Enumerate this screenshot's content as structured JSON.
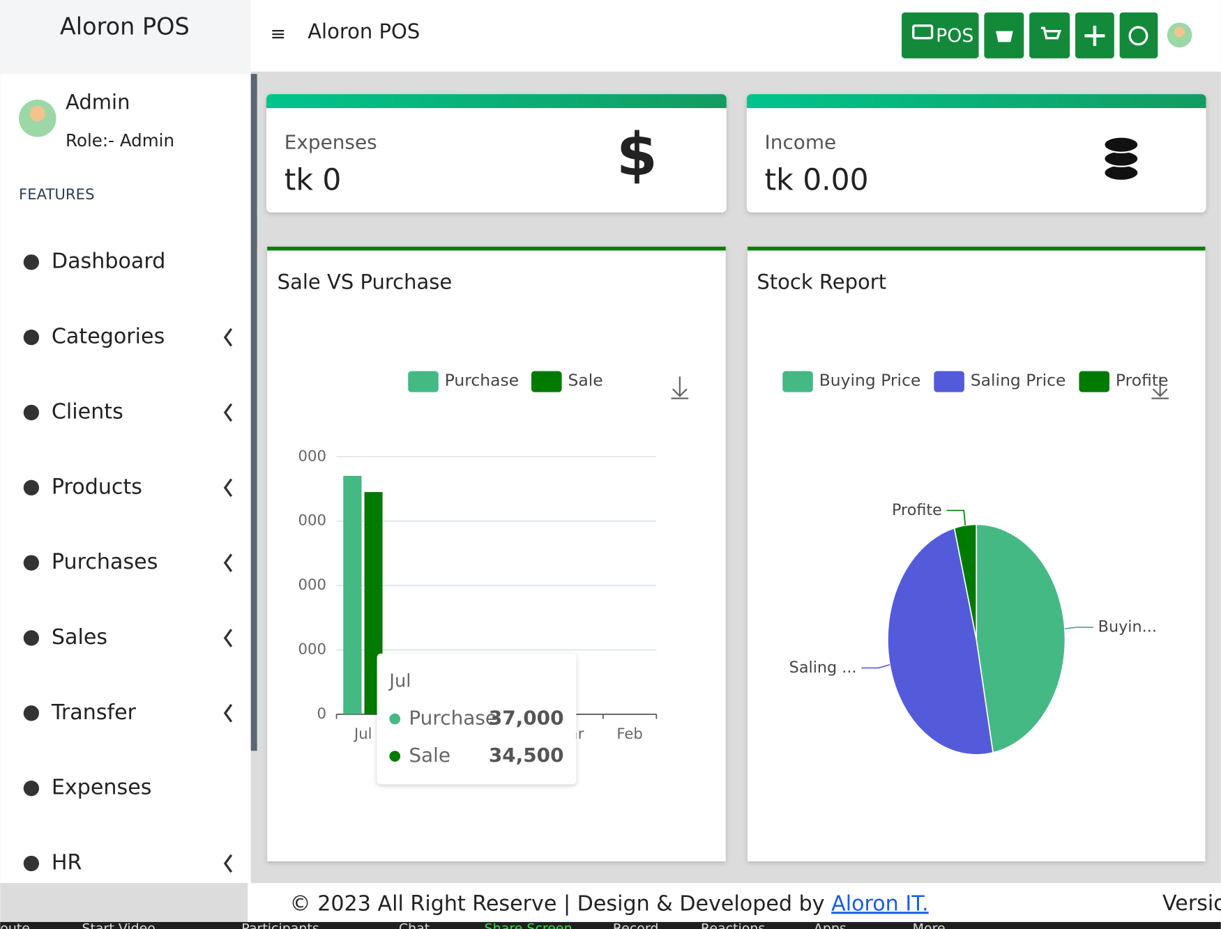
{
  "header": {
    "brand": "Aloron POS",
    "title": "Aloron POS",
    "pos_button": "POS"
  },
  "user": {
    "name": "Admin",
    "role": "Role:- Admin"
  },
  "menu": {
    "heading": "FEATURES",
    "items": [
      "Dashboard",
      "Categories",
      "Clients",
      "Products",
      "Purchases",
      "Sales",
      "Transfer",
      "Expenses",
      "HR"
    ]
  },
  "cards": [
    {
      "label": "Expenses",
      "value": "tk 0"
    },
    {
      "label": "Income",
      "value": "tk 0.00"
    }
  ],
  "chart_data": [
    {
      "type": "bar",
      "title": "Sale VS Purchase",
      "categories": [
        "Jul",
        null,
        null,
        null,
        "ar",
        "Feb"
      ],
      "series": [
        {
          "name": "Purchase",
          "color": "#45b984",
          "values": [
            37000,
            0,
            0,
            0,
            0,
            0
          ],
          "value_labels": [
            "37,000",
            null,
            null,
            null,
            null,
            null
          ]
        },
        {
          "name": "Sale",
          "color": "#007a00",
          "values": [
            34500,
            0,
            0,
            0,
            0,
            0
          ],
          "value_labels": [
            "34,500",
            null,
            null,
            null,
            null,
            null
          ]
        }
      ],
      "ylim": [
        0,
        40000
      ],
      "yticks": [
        0,
        {
          "value": 10000,
          "label": ",000"
        },
        {
          "value": 20000,
          "label": ",000"
        },
        {
          "value": 30000,
          "label": ",000"
        },
        {
          "value": 40000,
          "label": ",000"
        }
      ],
      "grid": true
    },
    {
      "type": "pie",
      "title": "Stock Report",
      "categories": [
        "Buying Price",
        "Saling Price",
        "Profite"
      ],
      "values": [
        47,
        49,
        4
      ],
      "colors": [
        "#45b984",
        "#535bdb",
        "#007a00"
      ],
      "labels": [
        "Buyin...",
        "Saling ...",
        "Profite"
      ]
    }
  ],
  "footer": {
    "text": "© 2023 All Right Reserve | Design & Developed by ",
    "link": "Aloron IT.",
    "version": "Versio"
  },
  "taskbar": [
    "oute",
    "Start Video",
    "Participants",
    "Chat",
    "Share Screen",
    "Record",
    "Reactions",
    "Apps",
    "More"
  ]
}
